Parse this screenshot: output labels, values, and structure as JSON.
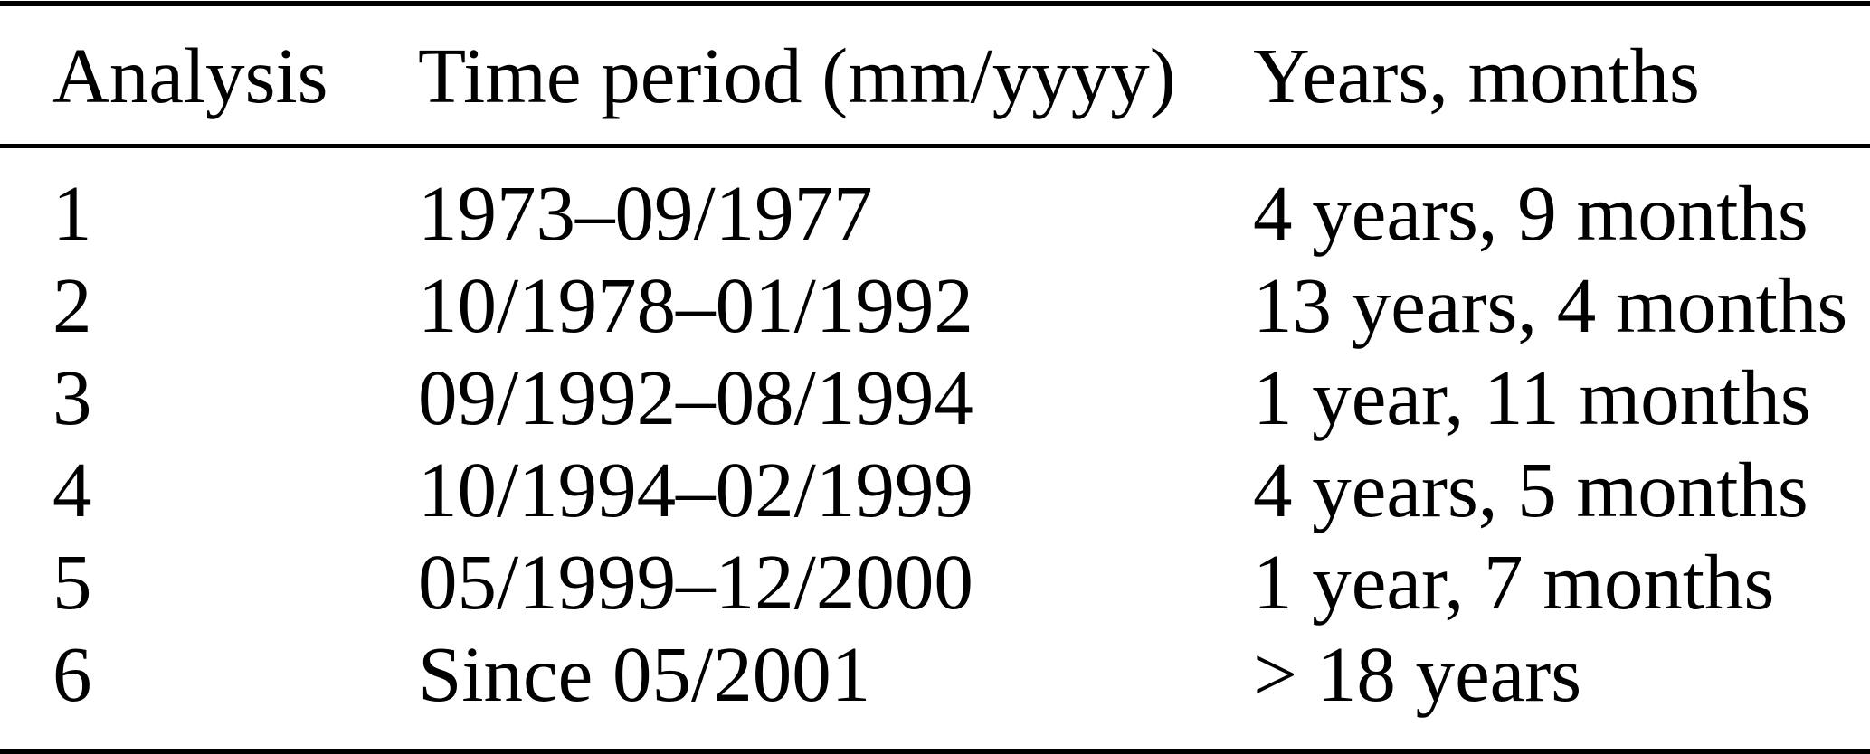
{
  "figure": {
    "kind": "table",
    "description_visible_text_only": true
  },
  "colors": {
    "text": "#000000",
    "background": "#ffffff",
    "rule": "#000000"
  },
  "table": {
    "columns": [
      "Analysis",
      "Time period (mm/yyyy)",
      "Years, months"
    ],
    "rows": [
      {
        "analysis": "1",
        "time_period": "1973–09/1977",
        "duration": "4 years, 9 months"
      },
      {
        "analysis": "2",
        "time_period": "10/1978–01/1992",
        "duration": "13 years, 4 months"
      },
      {
        "analysis": "3",
        "time_period": "09/1992–08/1994",
        "duration": "1 year, 11 months"
      },
      {
        "analysis": "4",
        "time_period": "10/1994–02/1999",
        "duration": "4 years, 5 months"
      },
      {
        "analysis": "5",
        "time_period": "05/1999–12/2000",
        "duration": "1 year, 7 months"
      },
      {
        "analysis": "6",
        "time_period": "Since 05/2001",
        "duration": "> 18 years"
      }
    ]
  }
}
